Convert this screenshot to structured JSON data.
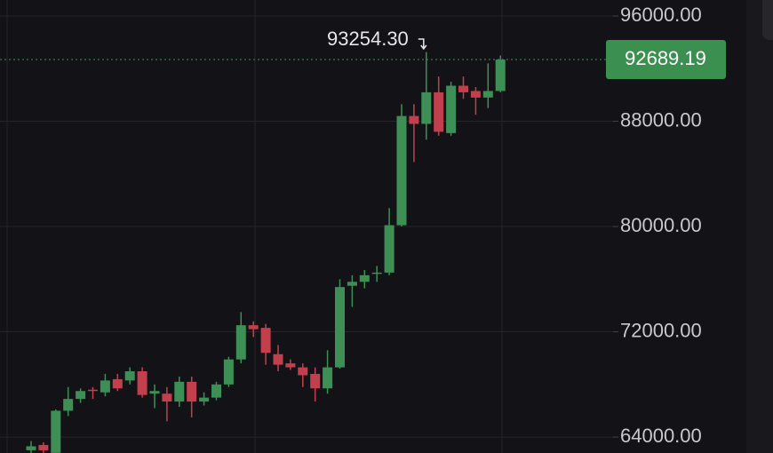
{
  "chart_data": {
    "type": "candlestick",
    "open": [
      63000,
      63400,
      62800,
      66000,
      66900,
      67600,
      67400,
      68400,
      68300,
      69000,
      67300,
      67300,
      66700,
      68200,
      66700,
      67000,
      68000,
      69900,
      72500,
      72300,
      70300,
      69600,
      69300,
      68800,
      67700,
      69300,
      75500,
      75800,
      76400,
      76500,
      80100,
      88400,
      87800,
      90200,
      87100,
      90700,
      90300,
      89800,
      90300
    ],
    "high": [
      63700,
      63600,
      66100,
      67800,
      67700,
      67800,
      68800,
      68800,
      69300,
      69300,
      68000,
      67800,
      68600,
      68600,
      67400,
      68200,
      70100,
      73500,
      72800,
      72600,
      71000,
      69900,
      69600,
      69300,
      70600,
      76000,
      76300,
      76700,
      77000,
      81400,
      89300,
      89300,
      93254.3,
      91400,
      91000,
      91400,
      90600,
      92400,
      93000
    ],
    "low": [
      62800,
      62800,
      62800,
      65600,
      66600,
      66900,
      67100,
      67500,
      68000,
      67000,
      66200,
      65200,
      66300,
      65500,
      66400,
      66800,
      67800,
      69600,
      71600,
      69500,
      69000,
      69100,
      67800,
      66700,
      67300,
      69200,
      73900,
      75300,
      75800,
      76300,
      80000,
      84900,
      86600,
      86900,
      86900,
      89700,
      88500,
      89000,
      90200
    ],
    "close": [
      63300,
      63000,
      66000,
      66900,
      67500,
      67500,
      68300,
      67700,
      69000,
      67200,
      67500,
      66700,
      68200,
      66700,
      67000,
      68000,
      69900,
      72500,
      72200,
      70400,
      69500,
      69300,
      68700,
      67700,
      69300,
      75400,
      75800,
      76300,
      76500,
      80100,
      88400,
      87800,
      90200,
      87200,
      90700,
      90200,
      89800,
      90300,
      92689.19
    ],
    "up_color": "#3d8f55",
    "down_color": "#c2404d",
    "ylim": [
      62790,
      97215
    ],
    "yticks": [
      {
        "value": 96000,
        "label": "96000.00"
      },
      {
        "value": 88000,
        "label": "88000.00"
      },
      {
        "value": 80000,
        "label": "80000.00"
      },
      {
        "value": 72000,
        "label": "72000.00"
      },
      {
        "value": 64000,
        "label": "64000.00"
      }
    ],
    "grid": true,
    "high_annotation": {
      "value": 93254.3,
      "label": "93254.30"
    },
    "last_price": 92689.19
  }
}
